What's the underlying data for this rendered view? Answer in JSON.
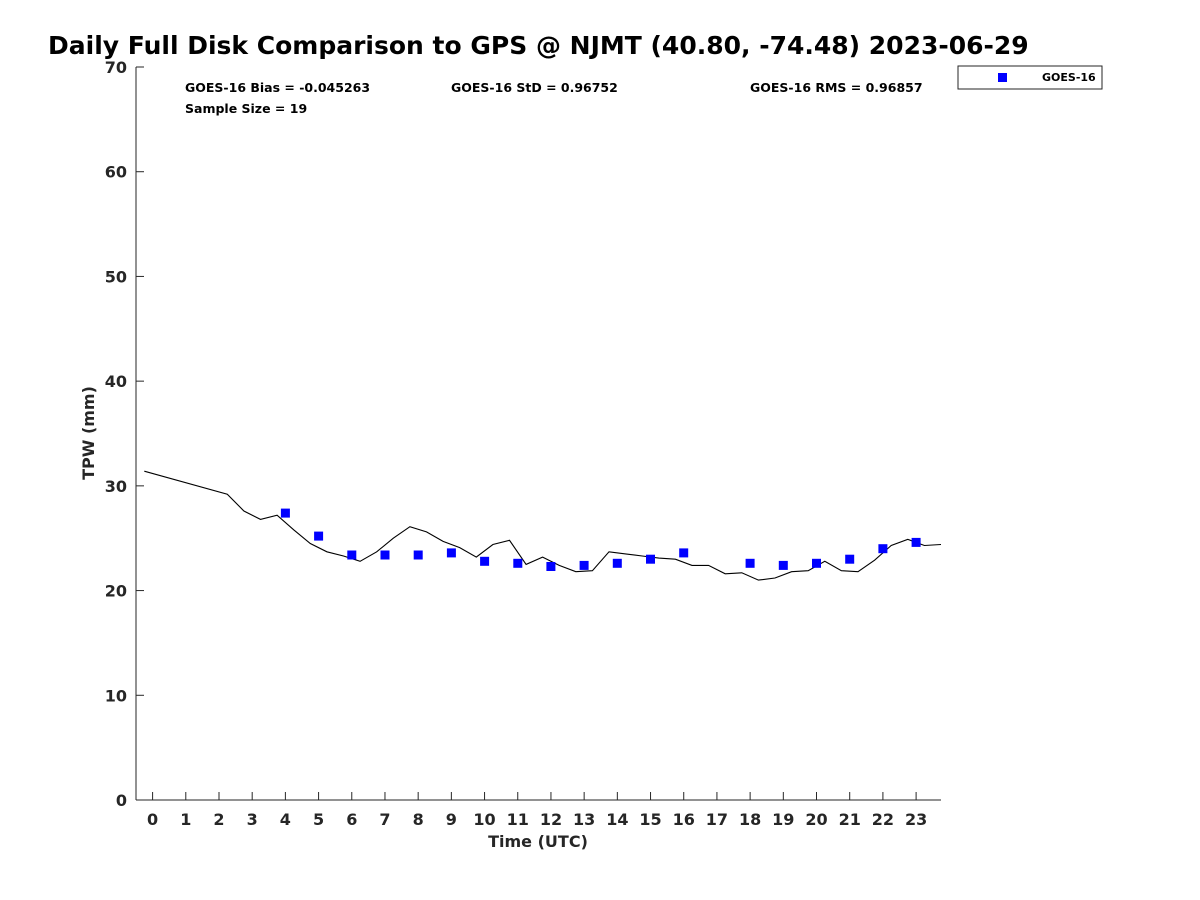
{
  "chart_data": {
    "type": "scatter",
    "title": "Daily Full Disk Comparison to GPS @ NJMT (40.80, -74.48) 2023-06-29",
    "xlabel": "Time (UTC)",
    "ylabel": "TPW (mm)",
    "xlim": [
      -0.5,
      23.75
    ],
    "ylim": [
      0,
      70
    ],
    "xticks": [
      0,
      1,
      2,
      3,
      4,
      5,
      6,
      7,
      8,
      9,
      10,
      11,
      12,
      13,
      14,
      15,
      16,
      17,
      18,
      19,
      20,
      21,
      22,
      23
    ],
    "yticks": [
      0,
      10,
      20,
      30,
      40,
      50,
      60,
      70
    ],
    "grid": false,
    "legend_position": "top-right, outside plot area",
    "stats": {
      "bias": "GOES-16 Bias = -0.045263",
      "std": "GOES-16 StD = 0.96752",
      "rms": "GOES-16 RMS = 0.96857",
      "sample_size": "Sample Size = 19"
    },
    "series": [
      {
        "name": "GOES-16",
        "kind": "scatter",
        "marker": "square",
        "color": "#0000ff",
        "x": [
          4,
          5,
          6,
          7,
          8,
          9,
          10,
          11,
          12,
          13,
          14,
          15,
          16,
          18,
          19,
          20,
          21,
          22,
          23
        ],
        "y": [
          27.4,
          25.2,
          23.4,
          23.4,
          23.4,
          23.6,
          22.8,
          22.6,
          22.3,
          22.4,
          22.6,
          23.0,
          23.6,
          22.6,
          22.4,
          22.6,
          23.0,
          24.0,
          24.6
        ]
      },
      {
        "kind": "line",
        "color": "#000000",
        "x": [
          -0.25,
          2.25,
          2.75,
          3.25,
          3.75,
          4.25,
          4.75,
          5.25,
          5.75,
          6.25,
          6.75,
          7.25,
          7.75,
          8.25,
          8.75,
          9.25,
          9.75,
          10.25,
          10.75,
          11.25,
          11.75,
          12.25,
          12.75,
          13.25,
          13.75,
          14.25,
          14.75,
          15.25,
          15.75,
          16.25,
          16.75,
          17.25,
          17.75,
          18.25,
          18.75,
          19.25,
          19.75,
          20.25,
          20.75,
          21.25,
          21.75,
          22.25,
          22.75,
          23.25,
          23.75
        ],
        "y": [
          31.4,
          29.2,
          27.6,
          26.8,
          27.2,
          25.8,
          24.5,
          23.7,
          23.3,
          22.8,
          23.7,
          25.0,
          26.1,
          25.6,
          24.7,
          24.1,
          23.2,
          24.4,
          24.8,
          22.5,
          23.2,
          22.4,
          21.8,
          21.9,
          23.7,
          23.5,
          23.3,
          23.1,
          23.0,
          22.4,
          22.4,
          21.6,
          21.7,
          21.0,
          21.2,
          21.8,
          21.9,
          22.8,
          21.9,
          21.8,
          22.9,
          24.3,
          24.9,
          24.3,
          24.4
        ]
      }
    ]
  }
}
